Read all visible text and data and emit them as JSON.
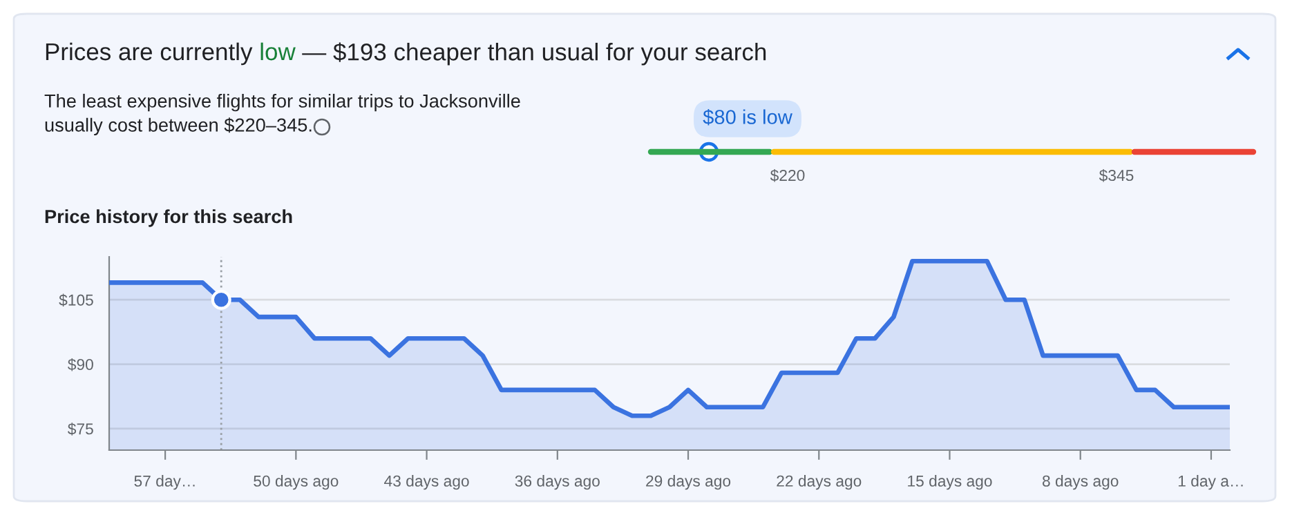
{
  "chart_data": {
    "type": "area",
    "title": "Prices are currently low — $193 cheaper than usual for your search",
    "subtitle": "The least expensive flights for similar trips to Jacksonville\nusually cost between $220–345.",
    "annotations": [
      "Price history for this search",
      "$80 is low",
      "$220",
      "$345"
    ],
    "x": [
      60,
      59,
      58,
      57,
      56,
      55,
      54,
      53,
      52,
      51,
      50,
      49,
      48,
      47,
      46,
      45,
      44,
      43,
      42,
      41,
      40,
      39,
      38,
      37,
      36,
      35,
      34,
      33,
      32,
      31,
      30,
      29,
      28,
      27,
      26,
      25,
      24,
      23,
      22,
      21,
      20,
      19,
      18,
      17,
      16,
      15,
      14,
      13,
      12,
      11,
      10,
      9,
      8,
      7,
      6,
      5,
      4,
      3,
      2,
      1,
      0
    ],
    "series": [
      {
        "color": "#3b73e0",
        "values": [
          109,
          109,
          109,
          109,
          109,
          109,
          105,
          105,
          101,
          101,
          101,
          96,
          96,
          96,
          96,
          92,
          96,
          96,
          96,
          96,
          92,
          84,
          84,
          84,
          84,
          84,
          84,
          80,
          78,
          78,
          80,
          84,
          80,
          80,
          80,
          80,
          88,
          88,
          88,
          88,
          96,
          96,
          101,
          114,
          114,
          114,
          114,
          114,
          105,
          105,
          92,
          92,
          92,
          92,
          92,
          84,
          84,
          80,
          80,
          80,
          80
        ]
      },
      {
        "type": "scatter",
        "color": "#3b73e0",
        "x": [
          54
        ],
        "values": [
          105
        ]
      }
    ],
    "xlim": [
      60,
      0
    ],
    "xticks": [
      {
        "value": 57,
        "label": "57 day…"
      },
      {
        "value": 50,
        "label": "50 days ago"
      },
      {
        "value": 43,
        "label": "43 days ago"
      },
      {
        "value": 36,
        "label": "36 days ago"
      },
      {
        "value": 29,
        "label": "29 days ago"
      },
      {
        "value": 22,
        "label": "22 days ago"
      },
      {
        "value": 15,
        "label": "15 days ago"
      },
      {
        "value": 8,
        "label": "8 days ago"
      },
      {
        "value": 1,
        "label": "1 day a…"
      }
    ],
    "ylim": [
      70,
      115
    ],
    "yticks": [
      {
        "value": 75,
        "label": "$75"
      },
      {
        "value": 90,
        "label": "$90"
      },
      {
        "value": 105,
        "label": "$105"
      }
    ],
    "ref_lines": [
      {
        "axis": "x",
        "value": 54,
        "color": "#9aa0a6",
        "line_style": "dotted"
      }
    ],
    "grid": "y"
  }
}
